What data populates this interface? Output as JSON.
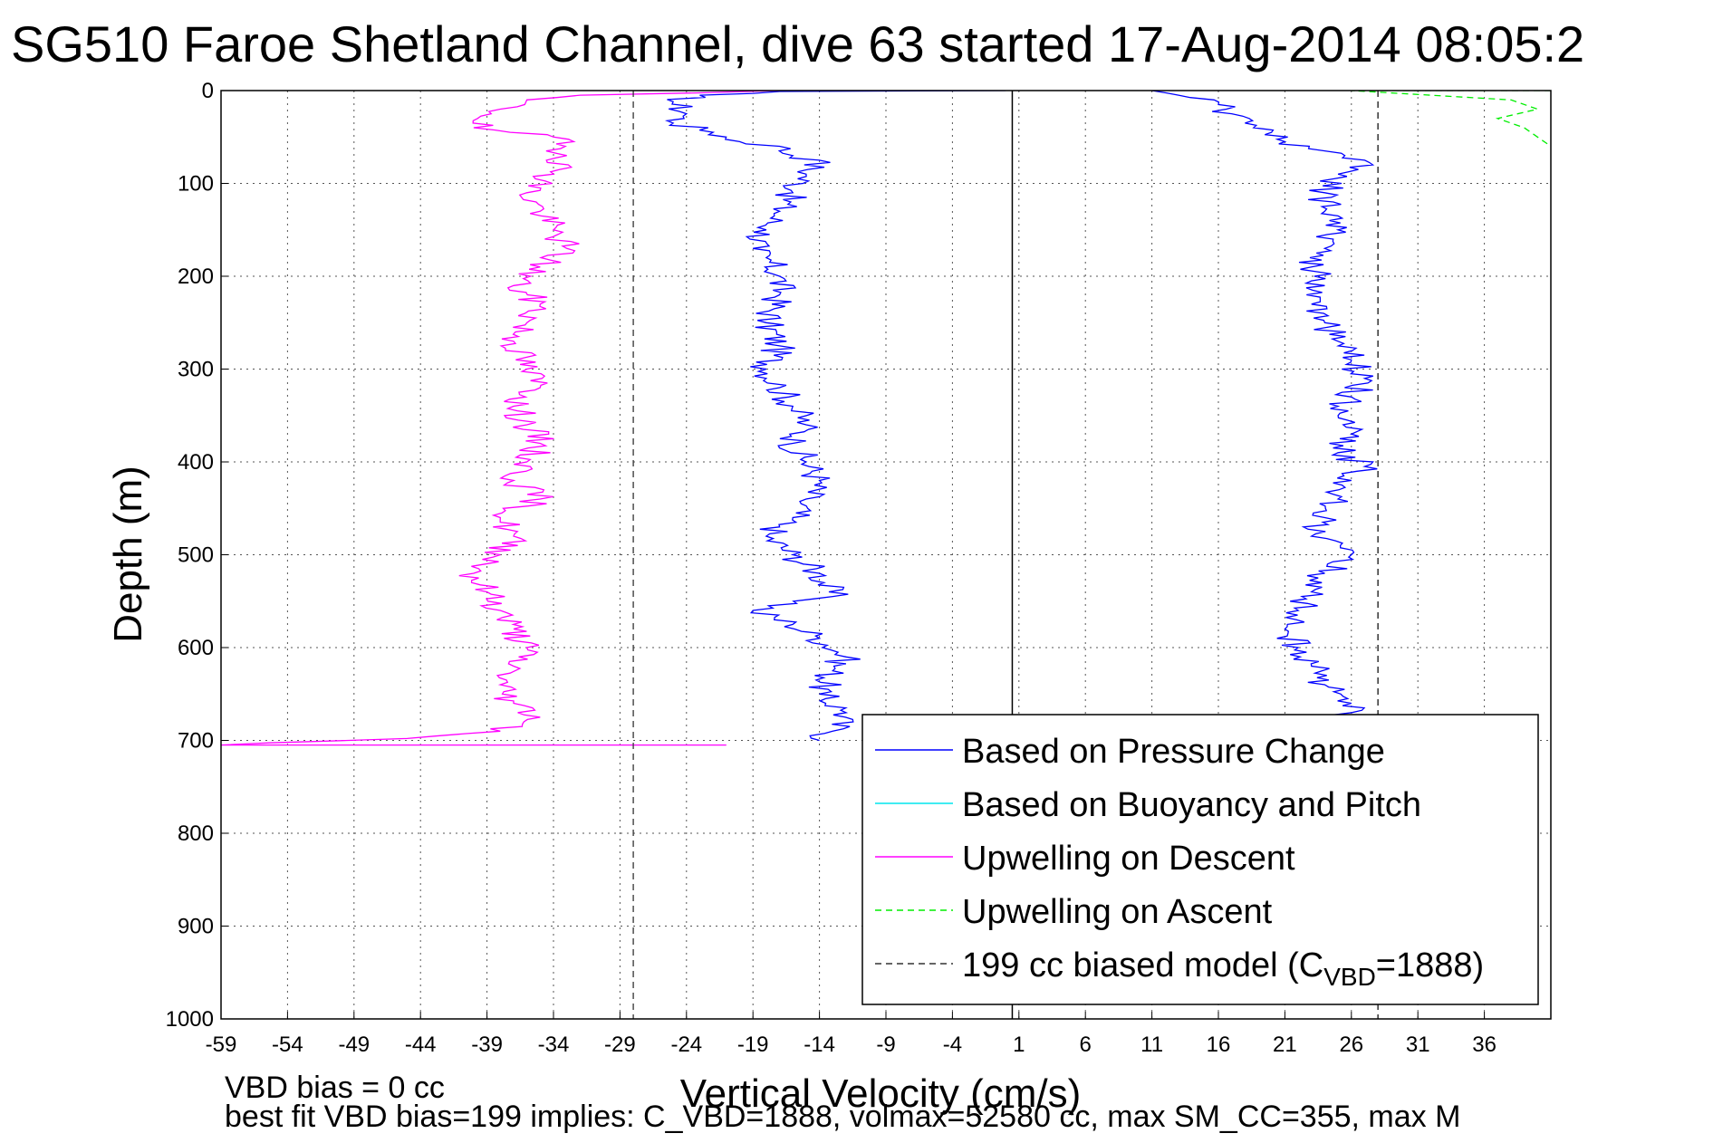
{
  "chart_data": {
    "type": "line",
    "title": "SG510 Faroe Shetland Channel, dive 63 started 17-Aug-2014 08:05:2",
    "xlabel": "Vertical Velocity (cm/s)",
    "ylabel": "Depth (m)",
    "xlim": [
      -59,
      41
    ],
    "ylim": [
      0,
      1000
    ],
    "y_reversed": true,
    "grid": true,
    "xticks": [
      -59,
      -54,
      -49,
      -44,
      -39,
      -34,
      -29,
      -24,
      -19,
      -14,
      -9,
      -4,
      1,
      6,
      11,
      16,
      21,
      26,
      31,
      36
    ],
    "yticks": [
      0,
      100,
      200,
      300,
      400,
      500,
      600,
      700,
      800,
      900,
      1000
    ],
    "legend_position": "bottom-right",
    "series": [
      {
        "name": "Based on Pressure Change",
        "color": "#0000ff",
        "style": "solid",
        "segments": [
          {
            "label": "descent",
            "points": [
              [
                0,
                0
              ],
              [
                -17,
                1
              ],
              [
                -23,
                5
              ],
              [
                -25,
                12
              ],
              [
                -24,
                25
              ],
              [
                -25,
                35
              ],
              [
                -22,
                45
              ],
              [
                -20,
                55
              ],
              [
                -17,
                60
              ],
              [
                -16,
                70
              ],
              [
                -14,
                75
              ],
              [
                -15,
                90
              ],
              [
                -16,
                110
              ],
              [
                -17,
                130
              ],
              [
                -18,
                150
              ],
              [
                -19,
                170
              ],
              [
                -18,
                180
              ],
              [
                -17,
                200
              ],
              [
                -17,
                220
              ],
              [
                -18,
                250
              ],
              [
                -17,
                275
              ],
              [
                -18,
                300
              ],
              [
                -17,
                320
              ],
              [
                -16,
                340
              ],
              [
                -15,
                360
              ],
              [
                -16,
                380
              ],
              [
                -15,
                400
              ],
              [
                -14,
                420
              ],
              [
                -15,
                440
              ],
              [
                -16,
                460
              ],
              [
                -17,
                470
              ],
              [
                -18,
                480
              ],
              [
                -16,
                500
              ],
              [
                -14,
                520
              ],
              [
                -13,
                545
              ],
              [
                -19,
                560
              ],
              [
                -16,
                575
              ],
              [
                -14,
                590
              ],
              [
                -12,
                610
              ],
              [
                -13,
                625
              ],
              [
                -14,
                650
              ],
              [
                -12,
                670
              ],
              [
                -13,
                690
              ],
              [
                -14,
                700
              ]
            ]
          },
          {
            "label": "ascent",
            "points": [
              [
                23,
                700
              ],
              [
                25,
                680
              ],
              [
                26,
                660
              ],
              [
                24,
                640
              ],
              [
                23,
                620
              ],
              [
                22,
                600
              ],
              [
                21,
                580
              ],
              [
                22,
                560
              ],
              [
                23,
                540
              ],
              [
                24,
                520
              ],
              [
                26,
                500
              ],
              [
                23,
                480
              ],
              [
                24,
                460
              ],
              [
                25,
                440
              ],
              [
                26,
                420
              ],
              [
                27,
                405
              ],
              [
                25,
                390
              ],
              [
                26,
                370
              ],
              [
                25,
                350
              ],
              [
                26,
                330
              ],
              [
                27,
                310
              ],
              [
                26,
                290
              ],
              [
                25,
                270
              ],
              [
                24,
                250
              ],
              [
                23,
                230
              ],
              [
                24,
                210
              ],
              [
                23,
                190
              ],
              [
                24,
                170
              ],
              [
                25,
                150
              ],
              [
                24,
                130
              ],
              [
                24,
                110
              ],
              [
                25,
                90
              ],
              [
                27,
                75
              ],
              [
                24,
                65
              ],
              [
                21,
                55
              ],
              [
                20,
                45
              ],
              [
                18,
                35
              ],
              [
                17,
                25
              ],
              [
                16,
                15
              ],
              [
                13,
                5
              ],
              [
                11,
                0
              ]
            ]
          }
        ]
      },
      {
        "name": "Based on Buoyancy and Pitch",
        "color": "#00e5ee",
        "style": "solid",
        "points": []
      },
      {
        "name": "Upwelling on Descent",
        "color": "#ff00ff",
        "style": "solid",
        "points": [
          [
            -17,
            0
          ],
          [
            -32,
            5
          ],
          [
            -36,
            10
          ],
          [
            -38,
            20
          ],
          [
            -40,
            40
          ],
          [
            -34,
            50
          ],
          [
            -33,
            70
          ],
          [
            -34,
            90
          ],
          [
            -36,
            110
          ],
          [
            -35,
            130
          ],
          [
            -34,
            150
          ],
          [
            -33,
            170
          ],
          [
            -35,
            190
          ],
          [
            -37,
            210
          ],
          [
            -35,
            230
          ],
          [
            -36,
            250
          ],
          [
            -37,
            270
          ],
          [
            -36,
            300
          ],
          [
            -35,
            320
          ],
          [
            -37,
            340
          ],
          [
            -36,
            360
          ],
          [
            -35,
            380
          ],
          [
            -36,
            400
          ],
          [
            -37,
            420
          ],
          [
            -35,
            440
          ],
          [
            -38,
            460
          ],
          [
            -37,
            480
          ],
          [
            -38,
            500
          ],
          [
            -40,
            520
          ],
          [
            -39,
            540
          ],
          [
            -38,
            560
          ],
          [
            -37,
            580
          ],
          [
            -36,
            600
          ],
          [
            -37,
            620
          ],
          [
            -38,
            640
          ],
          [
            -37,
            660
          ],
          [
            -35,
            675
          ],
          [
            -38,
            690
          ],
          [
            -45,
            698
          ],
          [
            -59,
            705
          ],
          [
            -21,
            705
          ]
        ]
      },
      {
        "name": "Upwelling on Ascent",
        "color": "#00ee00",
        "style": "dashed",
        "points": [
          [
            41,
            0
          ],
          [
            26,
            0
          ],
          [
            38,
            10
          ],
          [
            40,
            20
          ],
          [
            37,
            30
          ],
          [
            39,
            40
          ],
          [
            40,
            50
          ],
          [
            41,
            60
          ]
        ]
      },
      {
        "name": "199 cc biased model (C_VBD=1888)",
        "color": "#333333",
        "style": "dashed",
        "points": [
          [
            -28,
            0
          ],
          [
            -28,
            1000
          ]
        ]
      }
    ],
    "reference_lines": [
      {
        "x": 0.5,
        "color": "#000000",
        "style": "solid"
      },
      {
        "x": 28,
        "color": "#333333",
        "style": "dashed"
      }
    ],
    "legend": [
      {
        "label": "Based on Pressure Change",
        "color": "#0000ff",
        "style": "solid"
      },
      {
        "label": "Based on Buoyancy and Pitch",
        "color": "#00e5ee",
        "style": "solid"
      },
      {
        "label": "Upwelling on Descent",
        "color": "#ff00ff",
        "style": "solid"
      },
      {
        "label": "Upwelling on Ascent",
        "color": "#00ee00",
        "style": "dashed"
      },
      {
        "label_prefix": "199 cc biased model (C",
        "label_sub": "VBD",
        "label_suffix": "=1888)",
        "color": "#333333",
        "style": "dashed"
      }
    ],
    "footer_lines": [
      "VBD bias = 0 cc",
      "best fit VBD bias=199 implies: C_VBD=1888, volmax=52580 cc, max SM_CC=355, max M"
    ]
  }
}
